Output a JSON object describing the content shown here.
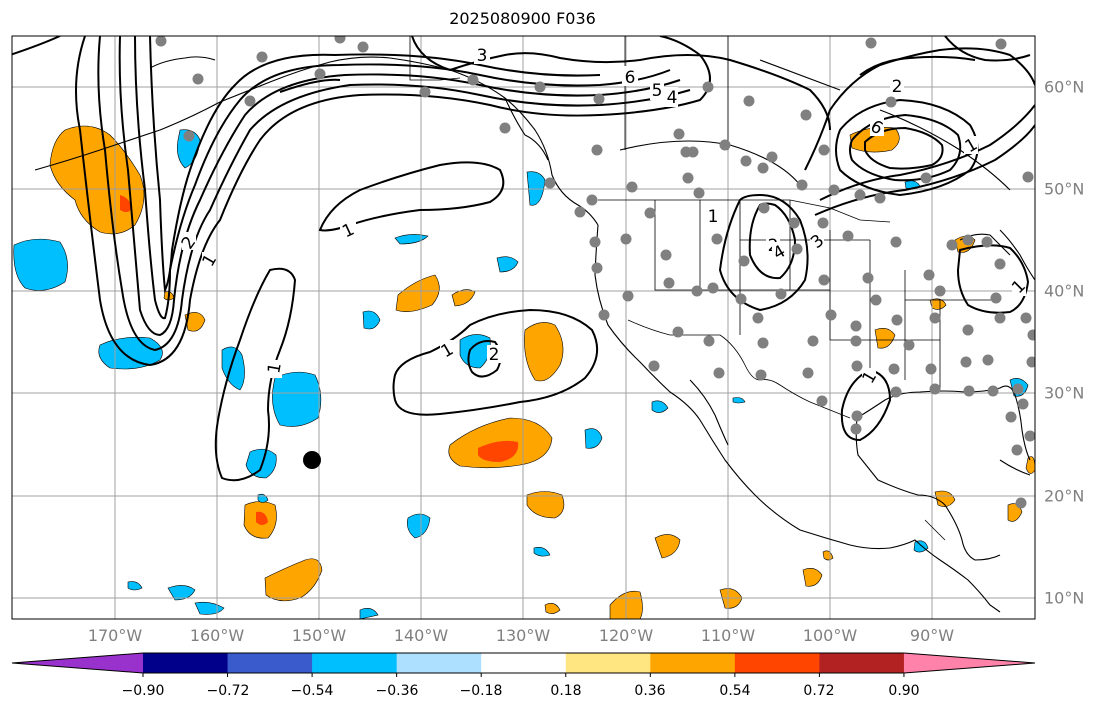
{
  "title": "2025080900 F036",
  "lon_labels": [
    "170°W",
    "160°W",
    "150°W",
    "140°W",
    "130°W",
    "120°W",
    "110°W",
    "100°W",
    "90°W"
  ],
  "lat_labels": [
    "60°N",
    "50°N",
    "40°N",
    "30°N",
    "20°N",
    "10°N"
  ],
  "contour_labels": [
    "3",
    "6",
    "5",
    "4",
    "2",
    "1",
    "1",
    "1",
    "2",
    "1",
    "1",
    "2",
    "3",
    "4",
    "1",
    "1",
    "1",
    "6",
    "2"
  ],
  "colorbar": {
    "tick_labels": [
      "−0.90",
      "−0.72",
      "−0.54",
      "−0.36",
      "−0.18",
      "0.18",
      "0.36",
      "0.54",
      "0.72",
      "0.90"
    ],
    "colors": [
      "#9932CC",
      "#00008B",
      "#3A5BCB",
      "#00BFFF",
      "#ADDFFF",
      "#FFFFFF",
      "#FFE680",
      "#FFA500",
      "#FF4500",
      "#B22222",
      "#FF82AB"
    ]
  },
  "fill_colors": {
    "positive_low": "#FFA500",
    "positive_high": "#FF4500",
    "negative": "#00BFFF",
    "station": "#808080",
    "marker": "#000000"
  }
}
